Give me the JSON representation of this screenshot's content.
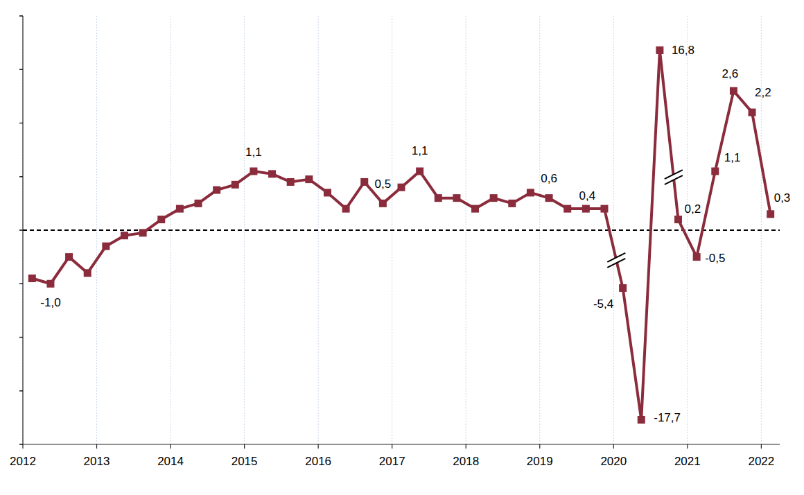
{
  "chart_data": {
    "type": "line",
    "x": [
      2012.125,
      2012.375,
      2012.625,
      2012.875,
      2013.125,
      2013.375,
      2013.625,
      2013.875,
      2014.125,
      2014.375,
      2014.625,
      2014.875,
      2015.125,
      2015.375,
      2015.625,
      2015.875,
      2016.125,
      2016.375,
      2016.625,
      2016.875,
      2017.125,
      2017.375,
      2017.625,
      2017.875,
      2018.125,
      2018.375,
      2018.625,
      2018.875,
      2019.125,
      2019.375,
      2019.625,
      2019.875,
      2020.125,
      2020.375,
      2020.625,
      2020.875,
      2021.125,
      2021.375,
      2021.625,
      2021.875,
      2022.125
    ],
    "xlim": [
      2012,
      2022.25
    ],
    "xticks": [
      2012,
      2013,
      2014,
      2015,
      2016,
      2017,
      2018,
      2019,
      2020,
      2021,
      2022
    ],
    "ylim": [
      -4,
      4
    ],
    "yticks": [
      -4,
      -3,
      -2,
      -1,
      0,
      1,
      2,
      3,
      4
    ],
    "y2lim": [
      -20,
      20
    ],
    "y2ticks": [
      -20,
      -15,
      -10,
      -5,
      0,
      5,
      10,
      15,
      20
    ],
    "grid": true,
    "tick_labels": "x",
    "data_labels": true,
    "series": [
      {
        "color": "#8b2c3c",
        "marker": "square",
        "line_style": "solid",
        "values": [
          -0.9,
          -1.0,
          -0.5,
          -0.8,
          -0.3,
          -0.1,
          -0.05,
          0.2,
          0.4,
          0.5,
          0.75,
          0.85,
          1.1,
          1.05,
          0.9,
          0.95,
          0.7,
          0.4,
          0.9,
          0.5,
          0.8,
          1.1,
          0.6,
          0.6,
          0.4,
          0.6,
          0.5,
          0.7,
          0.6,
          0.4,
          0.4,
          0.4,
          null,
          null,
          null,
          0.2,
          -0.5,
          1.1,
          2.6,
          2.2,
          0.3
        ],
        "value_labels": [
          null,
          "-1,0",
          null,
          null,
          null,
          null,
          null,
          null,
          null,
          null,
          null,
          null,
          "1,1",
          null,
          null,
          null,
          null,
          null,
          null,
          "0,5",
          null,
          "1,1",
          null,
          null,
          null,
          null,
          null,
          null,
          "0,6",
          null,
          "0,4",
          null,
          null,
          null,
          null,
          "0,2",
          "-0,5",
          "1,1",
          "2,6",
          "2,2",
          "0,3"
        ]
      },
      {
        "color": "#8b2c3c",
        "marker": "square",
        "line_style": "solid",
        "axis": "y2",
        "values": [
          null,
          null,
          null,
          null,
          null,
          null,
          null,
          null,
          null,
          null,
          null,
          null,
          null,
          null,
          null,
          null,
          null,
          null,
          null,
          null,
          null,
          null,
          null,
          null,
          null,
          null,
          null,
          null,
          null,
          null,
          null,
          null,
          -5.4,
          -17.7,
          16.8,
          null,
          null,
          null,
          null,
          null,
          null
        ],
        "value_labels": [
          null,
          null,
          null,
          null,
          null,
          null,
          null,
          null,
          null,
          null,
          null,
          null,
          null,
          null,
          null,
          null,
          null,
          null,
          null,
          null,
          null,
          null,
          null,
          null,
          null,
          null,
          null,
          null,
          null,
          null,
          null,
          null,
          "-5,4",
          "-17,7",
          "16,8",
          null,
          null,
          null,
          null,
          null,
          null
        ]
      }
    ]
  }
}
